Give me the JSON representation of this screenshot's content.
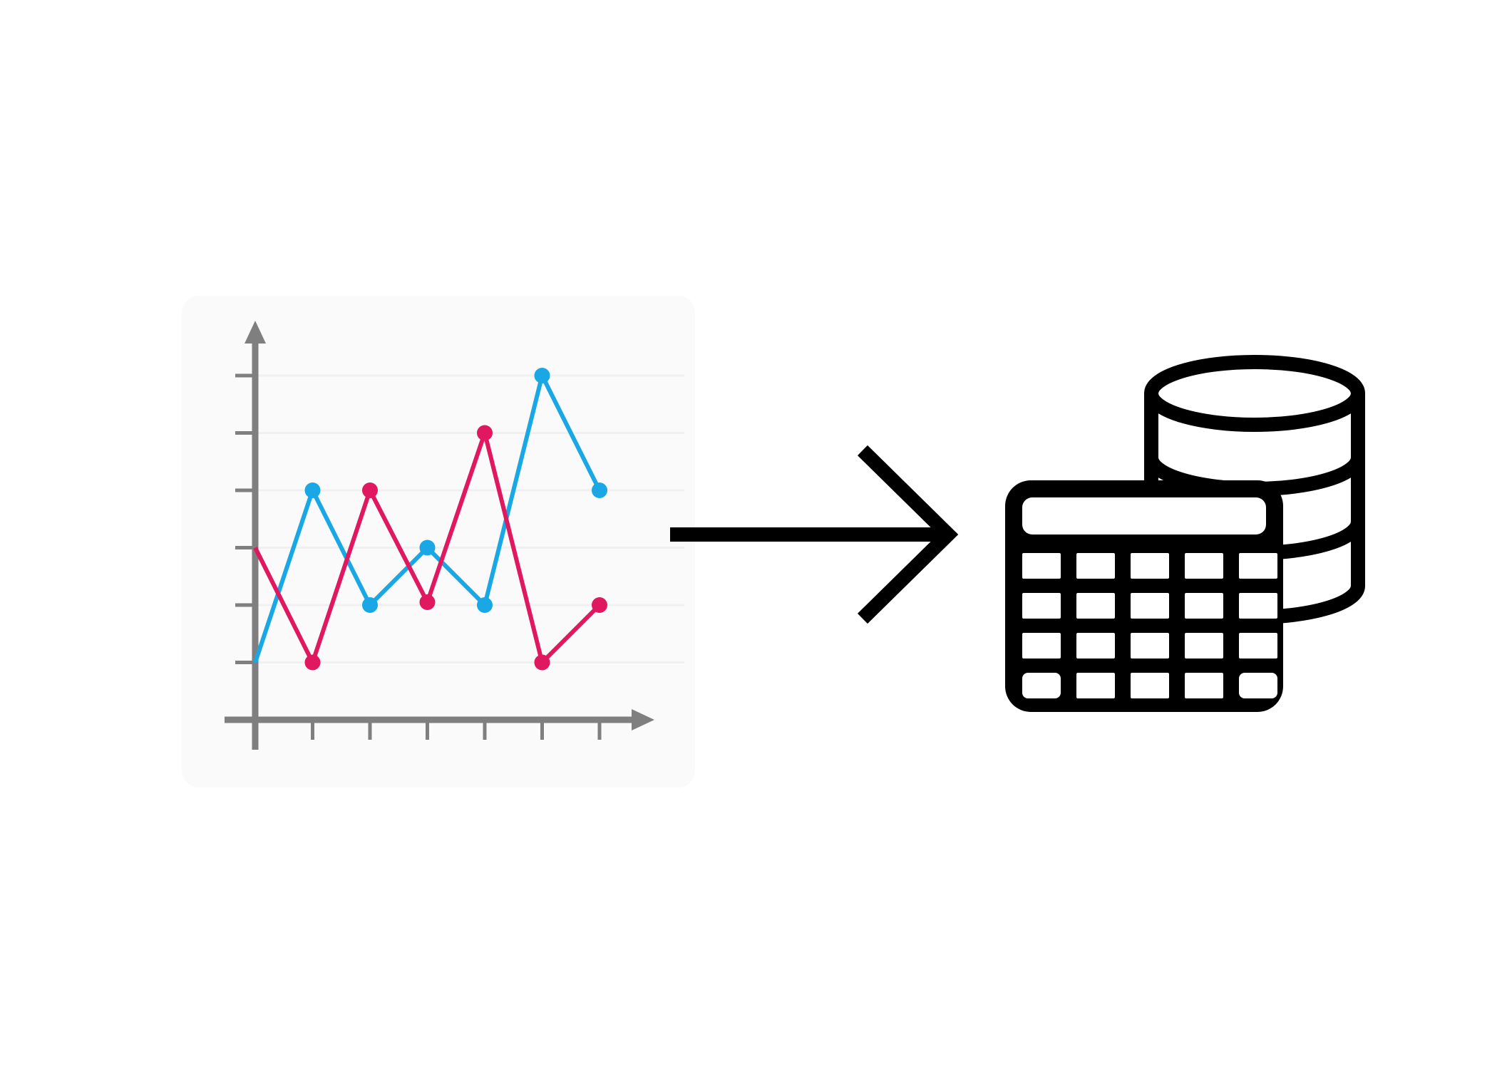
{
  "colors": {
    "background": "#ffffff",
    "chart_panel": "#fafafa",
    "axis": "#7f7f7f",
    "grid": "#f0f0f0",
    "arrow": "#000000",
    "database_icon": "#000000"
  },
  "icons": {
    "chart": "line-chart-icon",
    "arrow": "right-arrow-icon",
    "database": "database-table-icon"
  },
  "chart_data": {
    "type": "line",
    "x": [
      0,
      1,
      2,
      3,
      4,
      5,
      6
    ],
    "ylim": [
      0,
      6
    ],
    "xlim": [
      0,
      6.5
    ],
    "grid": true,
    "series": [
      {
        "color": "#1aa7e6",
        "values": [
          1,
          4,
          2,
          3,
          2,
          6,
          4
        ],
        "markers": [
          false,
          true,
          true,
          true,
          true,
          true,
          true
        ]
      },
      {
        "color": "#e0185f",
        "values": [
          3,
          1,
          4,
          2.05,
          5,
          1,
          2
        ],
        "markers": [
          false,
          true,
          true,
          true,
          true,
          true,
          true
        ]
      }
    ]
  }
}
